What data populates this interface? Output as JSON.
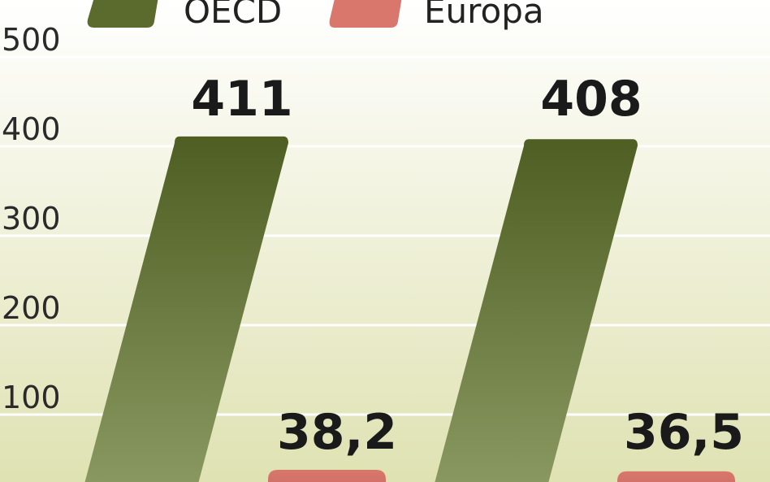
{
  "chart_data": {
    "type": "bar",
    "categories": [
      "",
      ""
    ],
    "series": [
      {
        "name": "OECD",
        "values": [
          411,
          408
        ],
        "labels": [
          "411",
          "408"
        ]
      },
      {
        "name": "Europa",
        "values": [
          38.2,
          36.5
        ],
        "labels": [
          "38,2",
          "36,5"
        ]
      }
    ],
    "y_ticks": [
      100,
      200,
      300,
      400,
      500
    ],
    "y_tick_labels": [
      "100",
      "200",
      "300",
      "400",
      "500"
    ],
    "ylim": [
      0,
      560
    ],
    "grid": true,
    "legend": "top-left"
  },
  "colors": {
    "OECD": "#5b6b2e",
    "OECD_light": "#8a9a62",
    "Europa": "#d9776d",
    "Europa_light": "#c96a60",
    "background_top": "#ffffff",
    "background_bottom": "#dfe2b2",
    "grid": "#ffffff"
  }
}
